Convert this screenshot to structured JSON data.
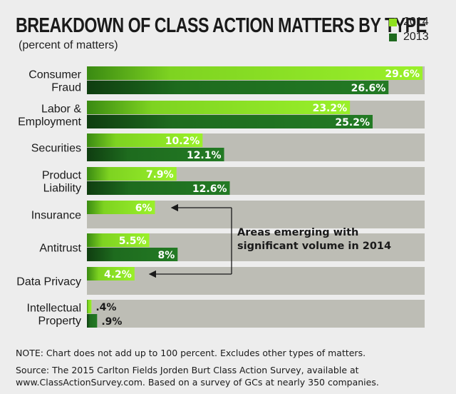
{
  "chart_data": {
    "type": "bar",
    "orientation": "horizontal",
    "title": "BREAKDOWN OF CLASS ACTION MATTERS BY TYPE",
    "subtitle": "(percent of matters)",
    "categories": [
      [
        "Consumer",
        "Fraud"
      ],
      [
        "Labor &",
        "Employment"
      ],
      [
        "Securities"
      ],
      [
        "Product",
        "Liability"
      ],
      [
        "Insurance"
      ],
      [
        "Antitrust"
      ],
      [
        "Data Privacy"
      ],
      [
        "Intellectual",
        "Property"
      ]
    ],
    "series": [
      {
        "name": "2014",
        "color": "#8fe01f",
        "values": [
          29.6,
          23.2,
          10.2,
          7.9,
          6,
          5.5,
          4.2,
          0.4
        ],
        "labels": [
          "29.6%",
          "23.2%",
          "10.2%",
          "7.9%",
          "6%",
          "5.5%",
          "4.2%",
          ".4%"
        ]
      },
      {
        "name": "2013",
        "color": "#1f6a1f",
        "values": [
          26.6,
          25.2,
          12.1,
          12.6,
          null,
          8,
          null,
          0.9
        ],
        "labels": [
          "26.6%",
          "25.2%",
          "12.1%",
          "12.6%",
          "",
          "8%",
          "",
          ".9%"
        ]
      }
    ],
    "xlim": [
      0,
      30
    ],
    "grid": false,
    "legend_position": "top-right",
    "annotation": {
      "text_lines": [
        "Areas emerging with",
        "significant volume in 2014"
      ],
      "points_to": [
        "Insurance",
        "Data Privacy"
      ]
    }
  },
  "footer": {
    "note": "NOTE: Chart does not add up to 100 percent. Excludes other types of matters.",
    "source_lines": [
      "Source: The 2015 Carlton Fields Jorden Burt Class Action Survey, available at",
      "www.ClassActionSurvey.com. Based on a survey of GCs at nearly 350 companies."
    ]
  }
}
